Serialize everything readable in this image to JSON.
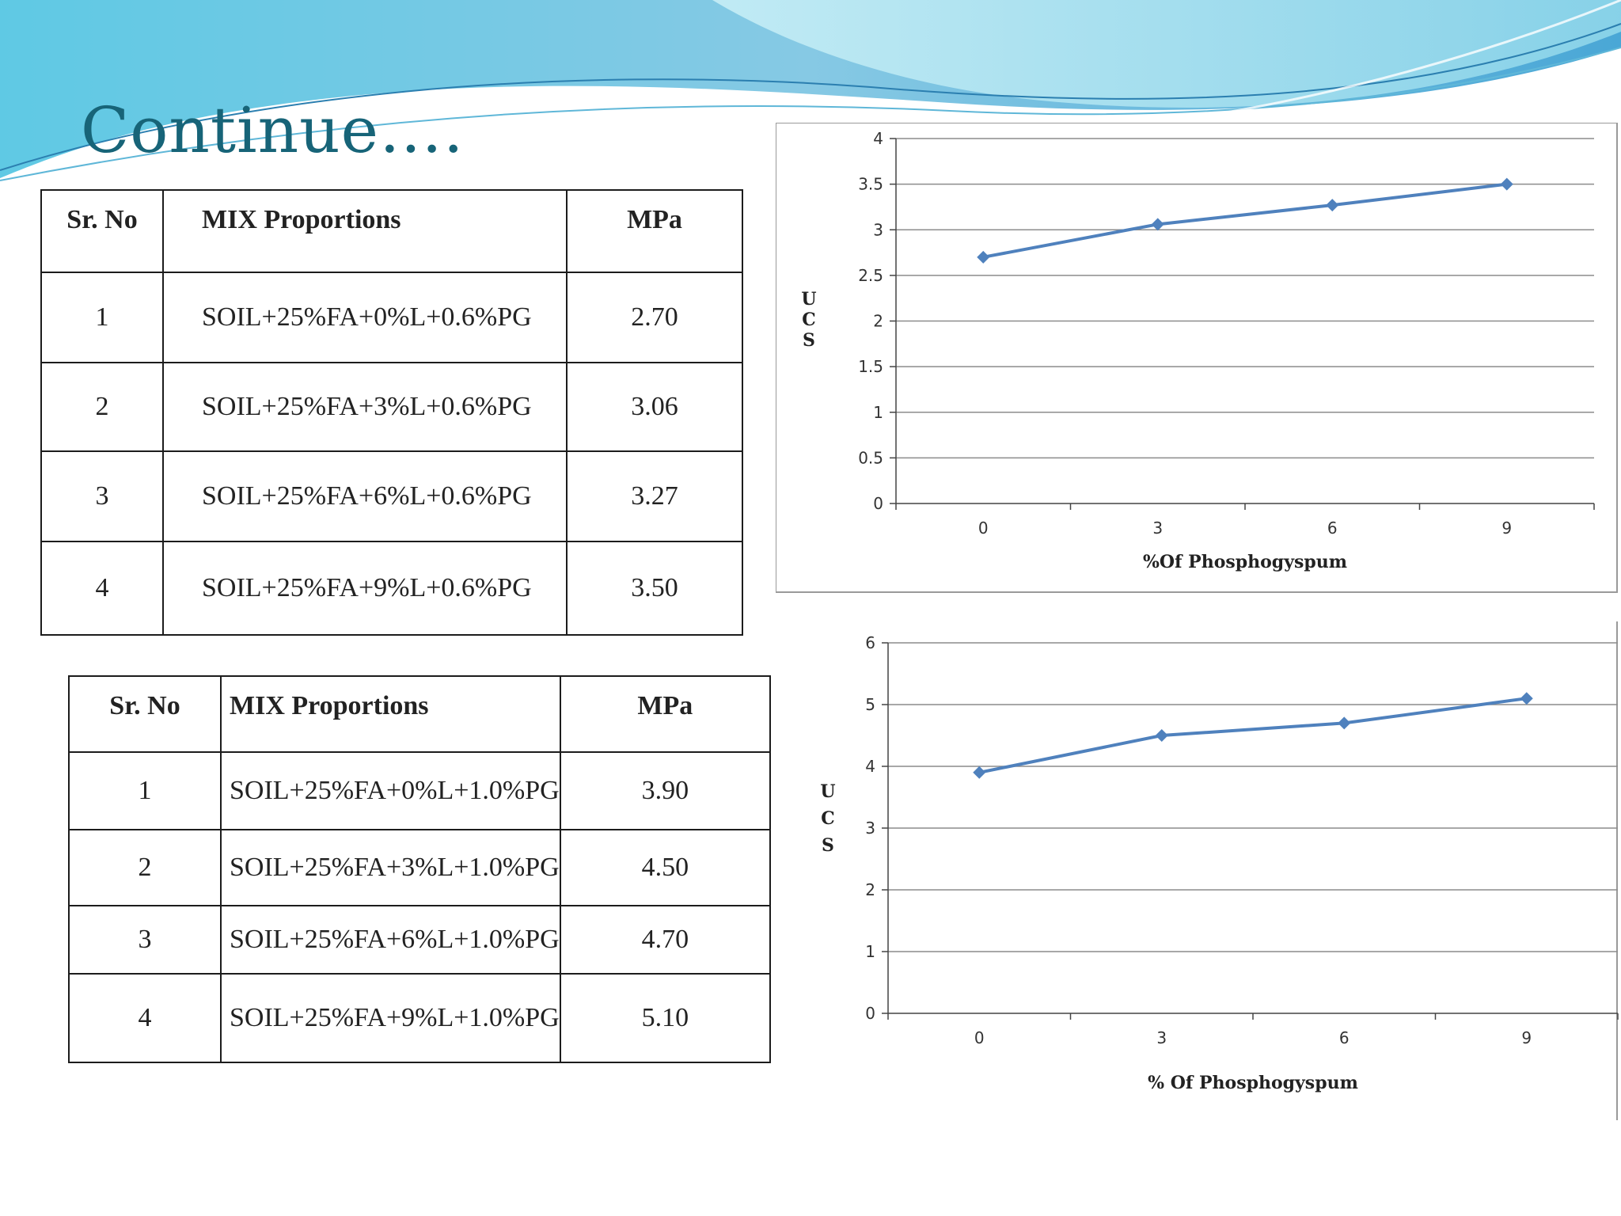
{
  "slide": {
    "title": "Continue…."
  },
  "table1": {
    "headers": [
      "Sr. No",
      "MIX Proportions",
      "MPa"
    ],
    "rows": [
      [
        "1",
        "SOIL+25%FA+0%L+0.6%PG",
        "2.70"
      ],
      [
        "2",
        "SOIL+25%FA+3%L+0.6%PG",
        "3.06"
      ],
      [
        "3",
        "SOIL+25%FA+6%L+0.6%PG",
        "3.27"
      ],
      [
        "4",
        "SOIL+25%FA+9%L+0.6%PG",
        "3.50"
      ]
    ]
  },
  "table2": {
    "headers": [
      "Sr. No",
      "MIX Proportions",
      "MPa"
    ],
    "rows": [
      [
        "1",
        "SOIL+25%FA+0%L+1.0%PG",
        "3.90"
      ],
      [
        "2",
        "SOIL+25%FA+3%L+1.0%PG",
        "4.50"
      ],
      [
        "3",
        "SOIL+25%FA+6%L+1.0%PG",
        "4.70"
      ],
      [
        "4",
        "SOIL+25%FA+9%L+1.0%PG",
        "5.10"
      ]
    ]
  },
  "colors": {
    "title": "#176478",
    "series": "#4f81bd",
    "grid": "#8c8c8c",
    "wave_light": "#9ddcec",
    "wave_dark": "#3a90c6"
  },
  "chart_data": [
    {
      "type": "line",
      "x": [
        0,
        3,
        6,
        9
      ],
      "series": [
        {
          "values": [
            2.7,
            3.06,
            3.27,
            3.5
          ]
        }
      ],
      "xlabel": "%Of Phosphogyspum",
      "ylabel": "UCS",
      "ylim": [
        0,
        4
      ],
      "yticks": [
        "0",
        "0.5",
        "1",
        "1.5",
        "2",
        "2.5",
        "3",
        "3.5",
        "4"
      ],
      "xticks": [
        "0",
        "3",
        "6",
        "9"
      ],
      "grid": true,
      "legend": "none"
    },
    {
      "type": "line",
      "x": [
        0,
        3,
        6,
        9
      ],
      "series": [
        {
          "values": [
            3.9,
            4.5,
            4.7,
            5.1
          ]
        }
      ],
      "xlabel": "% Of Phosphogyspum",
      "ylabel": "UCS",
      "ylim": [
        0,
        6
      ],
      "yticks": [
        "0",
        "1",
        "2",
        "3",
        "4",
        "5",
        "6"
      ],
      "xticks": [
        "0",
        "3",
        "6",
        "9"
      ],
      "grid": true,
      "legend": "none"
    }
  ]
}
